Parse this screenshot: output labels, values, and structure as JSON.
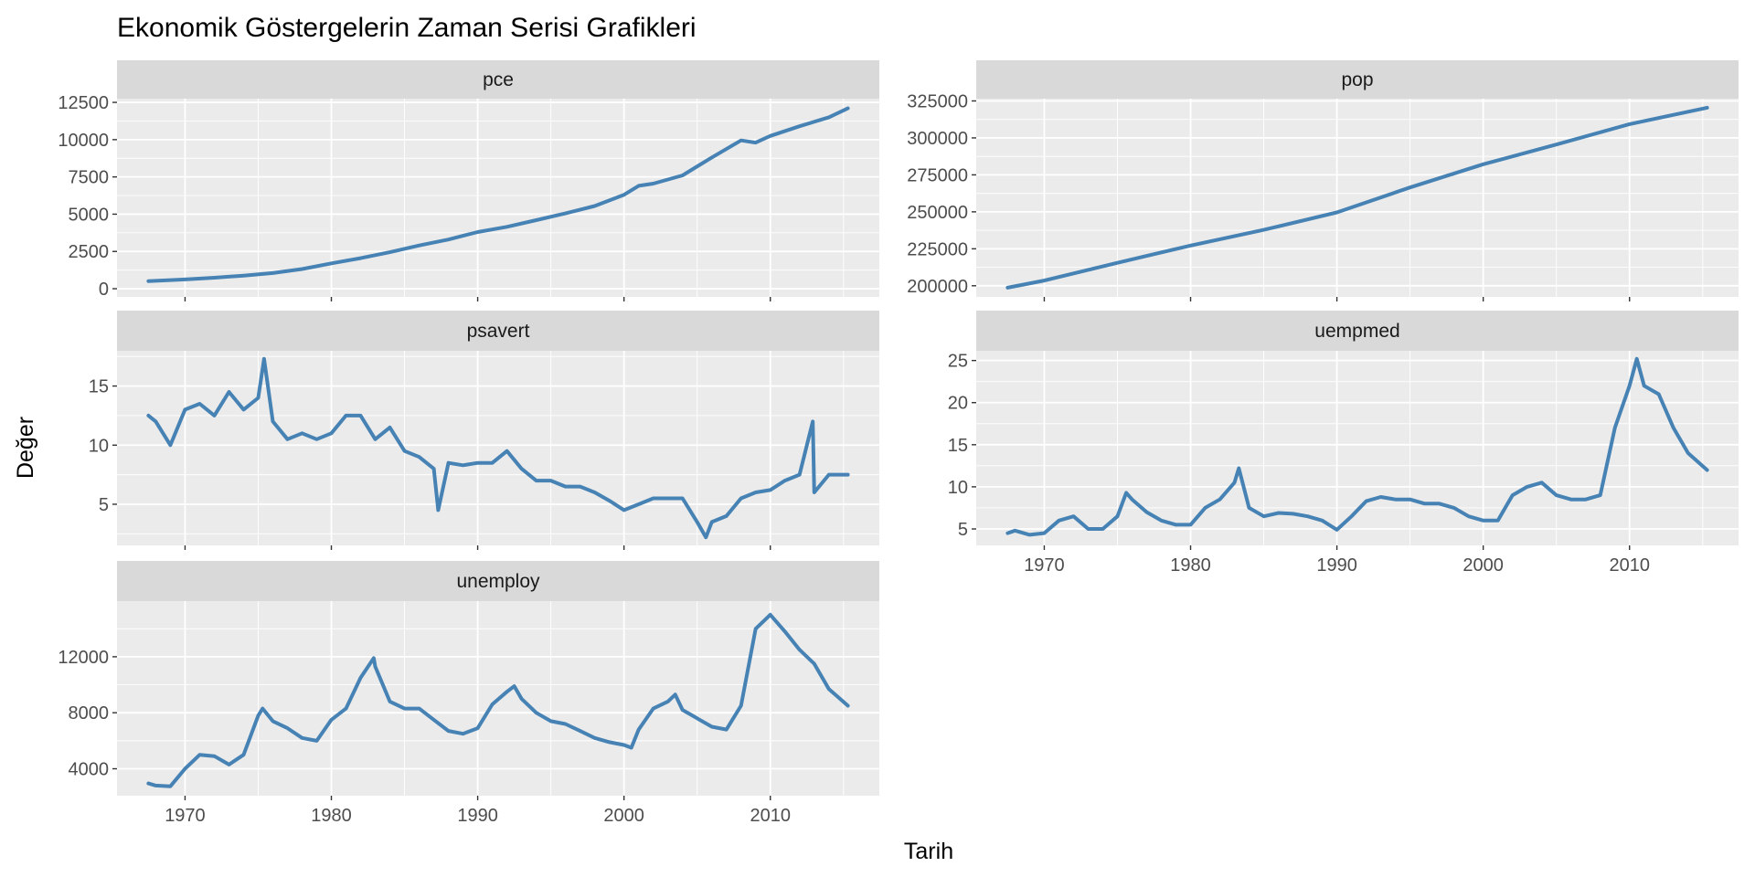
{
  "chart_data": {
    "type": "line",
    "title": "Ekonomik Göstergelerin Zaman Serisi Grafikleri",
    "xlabel": "Tarih",
    "ylabel": "Değer",
    "line_color": "#4682b4",
    "grid": true,
    "legend": "none",
    "facet_layout": "2 columns, free y scales",
    "x_ticks": [
      1970,
      1980,
      1990,
      2000,
      2010
    ],
    "xlim": [
      1967.5,
      2015.3
    ],
    "panels": [
      {
        "name": "pce",
        "ylim": [
          0,
          12200
        ],
        "y_ticks": [
          0,
          2500,
          5000,
          7500,
          10000,
          12500
        ],
        "y_tick_labels": [
          "0",
          "2500",
          "5000",
          "7500",
          "10000",
          "12500"
        ],
        "x": [
          1967.5,
          1970,
          1972,
          1974,
          1976,
          1978,
          1980,
          1982,
          1984,
          1986,
          1988,
          1990,
          1992,
          1994,
          1996,
          1998,
          2000,
          2001,
          2002,
          2004,
          2006,
          2008,
          2009,
          2010,
          2012,
          2014,
          2015.3
        ],
        "values": [
          507,
          620,
          735,
          880,
          1050,
          1320,
          1700,
          2050,
          2450,
          2900,
          3300,
          3800,
          4150,
          4600,
          5050,
          5550,
          6300,
          6900,
          7050,
          7600,
          8800,
          9950,
          9800,
          10250,
          10900,
          11500,
          12100
        ]
      },
      {
        "name": "pop",
        "ylim": [
          198000,
          321000
        ],
        "y_ticks": [
          200000,
          225000,
          250000,
          275000,
          300000,
          325000
        ],
        "y_tick_labels": [
          "200000",
          "225000",
          "250000",
          "275000",
          "300000",
          "325000"
        ],
        "x": [
          1967.5,
          1970,
          1975,
          1980,
          1985,
          1990,
          1995,
          2000,
          2005,
          2010,
          2015.3
        ],
        "values": [
          198700,
          203500,
          215500,
          227200,
          237800,
          249600,
          266500,
          282200,
          295500,
          309300,
          320400
        ]
      },
      {
        "name": "psavert",
        "ylim": [
          2.2,
          17.3
        ],
        "y_ticks": [
          5,
          10,
          15
        ],
        "y_tick_labels": [
          "5",
          "10",
          "15"
        ],
        "x": [
          1967.5,
          1968,
          1969,
          1970,
          1971,
          1972,
          1973,
          1974,
          1975,
          1975.4,
          1976,
          1977,
          1978,
          1979,
          1980,
          1981,
          1982,
          1983,
          1984,
          1985,
          1986,
          1987,
          1987.3,
          1988,
          1989,
          1990,
          1991,
          1992,
          1993,
          1994,
          1995,
          1996,
          1997,
          1998,
          1999,
          2000,
          2001,
          2002,
          2003,
          2004,
          2005,
          2005.6,
          2006,
          2007,
          2008,
          2009,
          2010,
          2011,
          2012,
          2012.9,
          2013,
          2014,
          2015.3
        ],
        "values": [
          12.5,
          12,
          10,
          13,
          13.5,
          12.5,
          14.5,
          13,
          14,
          17.3,
          12,
          10.5,
          11,
          10.5,
          11,
          12.5,
          12.5,
          10.5,
          11.5,
          9.5,
          9,
          8,
          4.5,
          8.5,
          8.3,
          8.5,
          8.5,
          9.5,
          8,
          7,
          7,
          6.5,
          6.5,
          6,
          5.3,
          4.5,
          5,
          5.5,
          5.5,
          5.5,
          3.5,
          2.2,
          3.5,
          4,
          5.5,
          6,
          6.2,
          7,
          7.5,
          12,
          6,
          7.5,
          7.5
        ]
      },
      {
        "name": "uempmed",
        "ylim": [
          4,
          25.2
        ],
        "y_ticks": [
          5,
          10,
          15,
          20,
          25
        ],
        "y_tick_labels": [
          "5",
          "10",
          "15",
          "20",
          "25"
        ],
        "x": [
          1967.5,
          1968,
          1969,
          1970,
          1971,
          1972,
          1973,
          1974,
          1975,
          1975.6,
          1976,
          1977,
          1978,
          1979,
          1980,
          1981,
          1982,
          1983,
          1983.3,
          1984,
          1985,
          1986,
          1987,
          1988,
          1989,
          1990,
          1991,
          1992,
          1993,
          1994,
          1995,
          1996,
          1997,
          1998,
          1999,
          2000,
          2001,
          2002,
          2003,
          2004,
          2005,
          2006,
          2007,
          2008,
          2009,
          2010,
          2010.5,
          2011,
          2012,
          2013,
          2014,
          2015.3
        ],
        "values": [
          4.5,
          4.8,
          4.3,
          4.5,
          6,
          6.5,
          5,
          5,
          6.5,
          9.3,
          8.5,
          7,
          6,
          5.5,
          5.5,
          7.5,
          8.5,
          10.5,
          12.2,
          7.5,
          6.5,
          6.9,
          6.8,
          6.5,
          6,
          4.9,
          6.5,
          8.3,
          8.8,
          8.5,
          8.5,
          8,
          8,
          7.5,
          6.5,
          6,
          6,
          9,
          10,
          10.5,
          9,
          8.5,
          8.5,
          9,
          17,
          22,
          25.2,
          22,
          21,
          17,
          14,
          12
        ]
      },
      {
        "name": "unemploy",
        "ylim": [
          2650,
          15400
        ],
        "y_ticks": [
          4000,
          8000,
          12000
        ],
        "y_tick_labels": [
          "4000",
          "8000",
          "12000"
        ],
        "x": [
          1967.5,
          1968,
          1969,
          1970,
          1971,
          1972,
          1973,
          1974,
          1975,
          1975.3,
          1976,
          1977,
          1978,
          1979,
          1980,
          1981,
          1982,
          1982.9,
          1983,
          1984,
          1985,
          1986,
          1987,
          1988,
          1989,
          1990,
          1991,
          1992,
          1992.5,
          1993,
          1994,
          1995,
          1996,
          1997,
          1998,
          1999,
          2000,
          2000.5,
          2001,
          2002,
          2003,
          2003.5,
          2004,
          2005,
          2006,
          2007,
          2008,
          2009,
          2010,
          2011,
          2012,
          2013,
          2014,
          2015.3
        ],
        "values": [
          2950,
          2800,
          2750,
          4000,
          5000,
          4900,
          4300,
          5000,
          7800,
          8300,
          7400,
          6900,
          6200,
          6000,
          7500,
          8300,
          10500,
          11900,
          11300,
          8800,
          8300,
          8300,
          7500,
          6700,
          6500,
          6900,
          8600,
          9500,
          9900,
          9000,
          8000,
          7400,
          7200,
          6700,
          6200,
          5900,
          5700,
          5500,
          6800,
          8300,
          8800,
          9300,
          8200,
          7600,
          7000,
          6800,
          8500,
          14000,
          15000,
          13800,
          12500,
          11500,
          9700,
          8500
        ]
      }
    ]
  }
}
